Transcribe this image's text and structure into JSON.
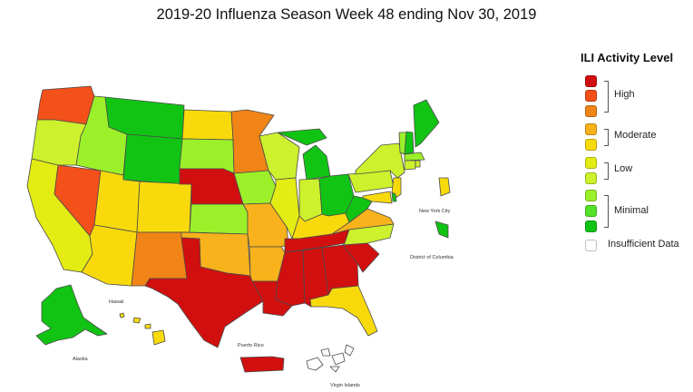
{
  "title": "2019-20 Influenza Season Week 48 ending Nov 30, 2019",
  "legend": {
    "title": "ILI Activity Level",
    "levels": [
      {
        "level": 10,
        "color": "#d20f0f"
      },
      {
        "level": 9,
        "color": "#f4501a"
      },
      {
        "level": 8,
        "color": "#f08416"
      },
      {
        "level": 7,
        "color": "#f7b21c"
      },
      {
        "level": 6,
        "color": "#f8da0c"
      },
      {
        "level": 5,
        "color": "#e3ec13"
      },
      {
        "level": 4,
        "color": "#cdf12c"
      },
      {
        "level": 3,
        "color": "#9cf02a"
      },
      {
        "level": 2,
        "color": "#54e22a"
      },
      {
        "level": 1,
        "color": "#11c414"
      },
      {
        "level": 0,
        "color": "#ffffff"
      }
    ],
    "groups": {
      "high": "High",
      "moderate": "Moderate",
      "low": "Low",
      "minimal": "Minimal",
      "insufficient": "Insufficient Data"
    }
  },
  "labels": {
    "new_york_city": "New York City",
    "district_of_columbia": "District of Columbia",
    "hawaii": "Hawaii",
    "alaska": "Alaska",
    "puerto_rico": "Puerto Rico",
    "virgin_islands": "Virgin Islands"
  },
  "states": {
    "WA": 9,
    "OR": 4,
    "CA": 5,
    "NV": 9,
    "ID": 3,
    "MT": 1,
    "WY": 1,
    "UT": 6,
    "AZ": 6,
    "CO": 6,
    "NM": 8,
    "ND": 6,
    "SD": 3,
    "NE": 10,
    "KS": 3,
    "OK": 7,
    "TX": 10,
    "MN": 8,
    "IA": 3,
    "MO": 7,
    "AR": 7,
    "LA": 10,
    "WI": 4,
    "IL": 5,
    "MI": 1,
    "IN": 4,
    "OH": 1,
    "KY": 6,
    "TN": 10,
    "MS": 10,
    "AL": 10,
    "GA": 10,
    "FL": 6,
    "SC": 10,
    "NC": 4,
    "VA": 7,
    "WV": 1,
    "PA": 4,
    "NY": 4,
    "VT": 3,
    "NH": 1,
    "ME": 1,
    "MA": 3,
    "CT": 4,
    "RI": 4,
    "NJ": 6,
    "DE": 1,
    "MD": 6,
    "DC": 1,
    "AK": 1,
    "HI": 6,
    "NYC": 6,
    "PR": 10,
    "VI": 0
  }
}
